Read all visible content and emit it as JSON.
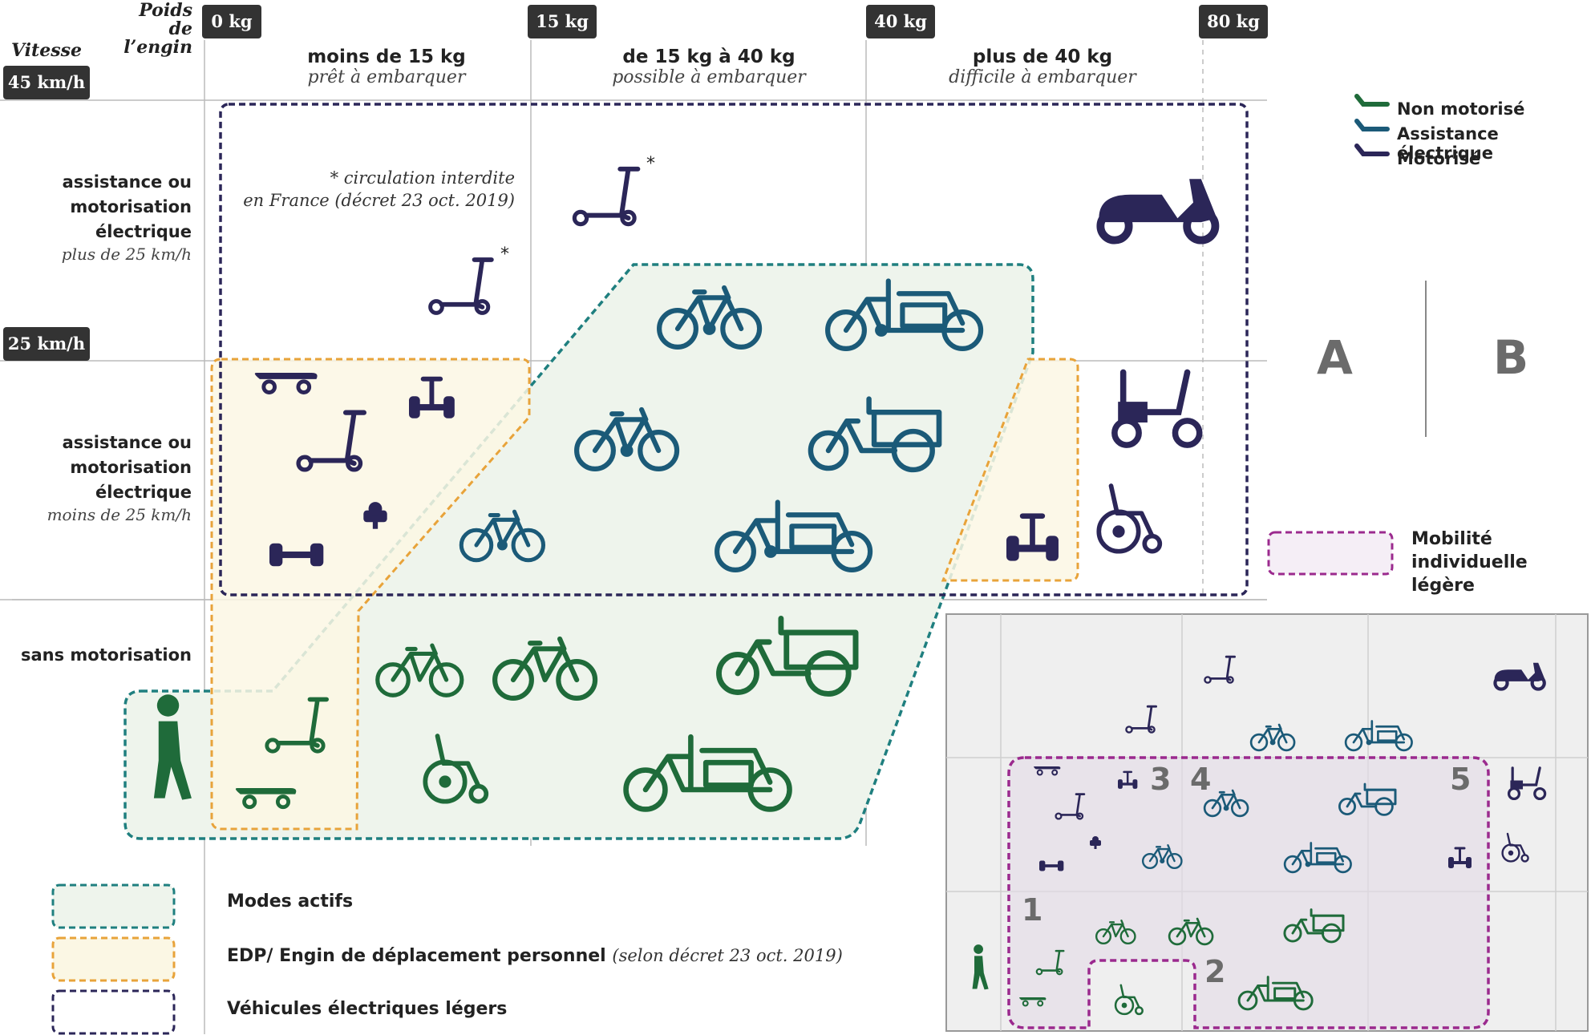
{
  "axes": {
    "weight_label": "Poids\nde l’engin",
    "speed_label": "Vitesse",
    "weight_ticks": [
      "0 kg",
      "15 kg",
      "40 kg",
      "80 kg"
    ],
    "speed_ticks": [
      "45 km/h",
      "25 km/h"
    ]
  },
  "columns": [
    {
      "title": "moins de 15 kg",
      "subtitle": "prêt à embarquer"
    },
    {
      "title": "de 15 kg à 40 kg",
      "subtitle": "possible à embarquer"
    },
    {
      "title": "plus de 40 kg",
      "subtitle": "difficile à embarquer"
    }
  ],
  "rows": [
    {
      "lines": [
        "assistance ou",
        "motorisation",
        "électrique"
      ],
      "subtitle": "plus de 25 km/h"
    },
    {
      "lines": [
        "assistance ou",
        "motorisation",
        "électrique"
      ],
      "subtitle": "moins de 25 km/h"
    },
    {
      "lines": [
        "sans motorisation"
      ],
      "subtitle": ""
    }
  ],
  "note": [
    "* circulation interdite",
    "en France (décret 23 oct. 2019)"
  ],
  "asterisk": "*",
  "legend_colors": [
    {
      "label": "Non motorisé",
      "color": "#1f6b3a"
    },
    {
      "label": "Assistance électrique",
      "color": "#1b5a78"
    },
    {
      "label": "Motorisé",
      "color": "#2b2658"
    }
  ],
  "ab": {
    "a": "A",
    "b": "B"
  },
  "mobilite": {
    "line1": "Mobilité",
    "line2": "individuelle légère",
    "color": "#9b2a8e"
  },
  "legend_boxes": [
    {
      "label": "Modes actifs",
      "detail": "",
      "border": "#1f7f7f",
      "fill": "#eef4ec"
    },
    {
      "label": "EDP/ Engin de déplacement personnel",
      "detail": "(selon décret 23 oct. 2019)",
      "border": "#e8a33a",
      "fill": "#fbf7e4"
    },
    {
      "label": "Véhicules électriques légers",
      "detail": "",
      "border": "#2b2658",
      "fill": "#ffffff"
    }
  ],
  "inset_numbers": [
    "1",
    "2",
    "3",
    "4",
    "5"
  ],
  "colors": {
    "green": "#1f6b3a",
    "blue": "#1b5a78",
    "navy": "#2b2658",
    "teal_border": "#1f7f7f",
    "orange_border": "#e8a33a",
    "purple_border": "#9b2a8e"
  }
}
